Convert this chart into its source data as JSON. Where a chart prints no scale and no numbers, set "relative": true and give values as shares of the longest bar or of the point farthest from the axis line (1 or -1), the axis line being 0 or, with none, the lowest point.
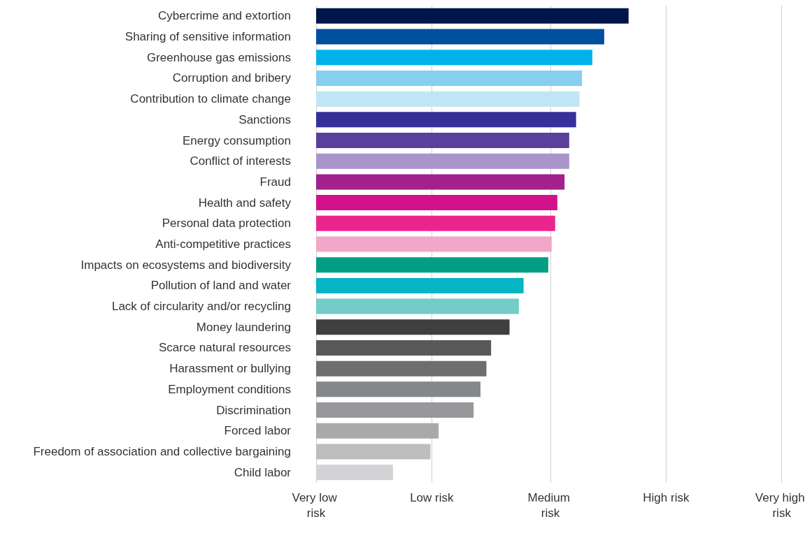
{
  "chart_data": {
    "type": "bar",
    "orientation": "horizontal",
    "relative": true,
    "categories": [
      "Cybercrime and extortion",
      "Sharing of sensitive information",
      "Greenhouse gas emissions",
      "Corruption and bribery",
      "Contribution to climate change",
      "Sanctions",
      "Energy consumption",
      "Conflict of interests",
      "Fraud",
      "Health and safety",
      "Personal data protection",
      "Anti-competitive practices",
      "Impacts on ecosystems and biodiversity",
      "Pollution of land and water",
      "Lack of circularity and/or recycling",
      "Money laundering",
      "Scarce natural resources",
      "Harassment or bullying",
      "Employment conditions",
      "Discrimination",
      "Forced labor",
      "Freedom of association and collective bargaining",
      "Child labor"
    ],
    "values": [
      1,
      0.922,
      0.884,
      0.851,
      0.843,
      0.832,
      0.81,
      0.81,
      0.795,
      0.772,
      0.765,
      0.754,
      0.743,
      0.664,
      0.649,
      0.619,
      0.56,
      0.545,
      0.526,
      0.504,
      0.392,
      0.366,
      0.246
    ],
    "colors": [
      "#00154a",
      "#00509e",
      "#00b2ea",
      "#86d0ef",
      "#c0e5f5",
      "#35309a",
      "#5b3f9c",
      "#a995c9",
      "#a1218d",
      "#d2118b",
      "#ea268e",
      "#f3a7c8",
      "#009e85",
      "#07b5c4",
      "#73ccc7",
      "#3f3f3f",
      "#595959",
      "#6e6e71",
      "#86878a",
      "#98989b",
      "#a9a9ac",
      "#bdbdc0",
      "#d3d3d5"
    ],
    "ref_lines": [
      {
        "axis": "x",
        "value": 0,
        "label": "Very low risk",
        "color": "#d0d0d0"
      },
      {
        "axis": "x",
        "value": 0.373,
        "label": "Low risk",
        "color": "#d0d0d0"
      },
      {
        "axis": "x",
        "value": 0.75,
        "label": "Medium risk",
        "color": "#d0d0d0"
      },
      {
        "axis": "x",
        "value": 1.119,
        "label": "High risk",
        "color": "#d0d0d0"
      },
      {
        "axis": "x",
        "value": 1.493,
        "label": "Very high risk",
        "color": "#d0d0d0"
      }
    ]
  }
}
